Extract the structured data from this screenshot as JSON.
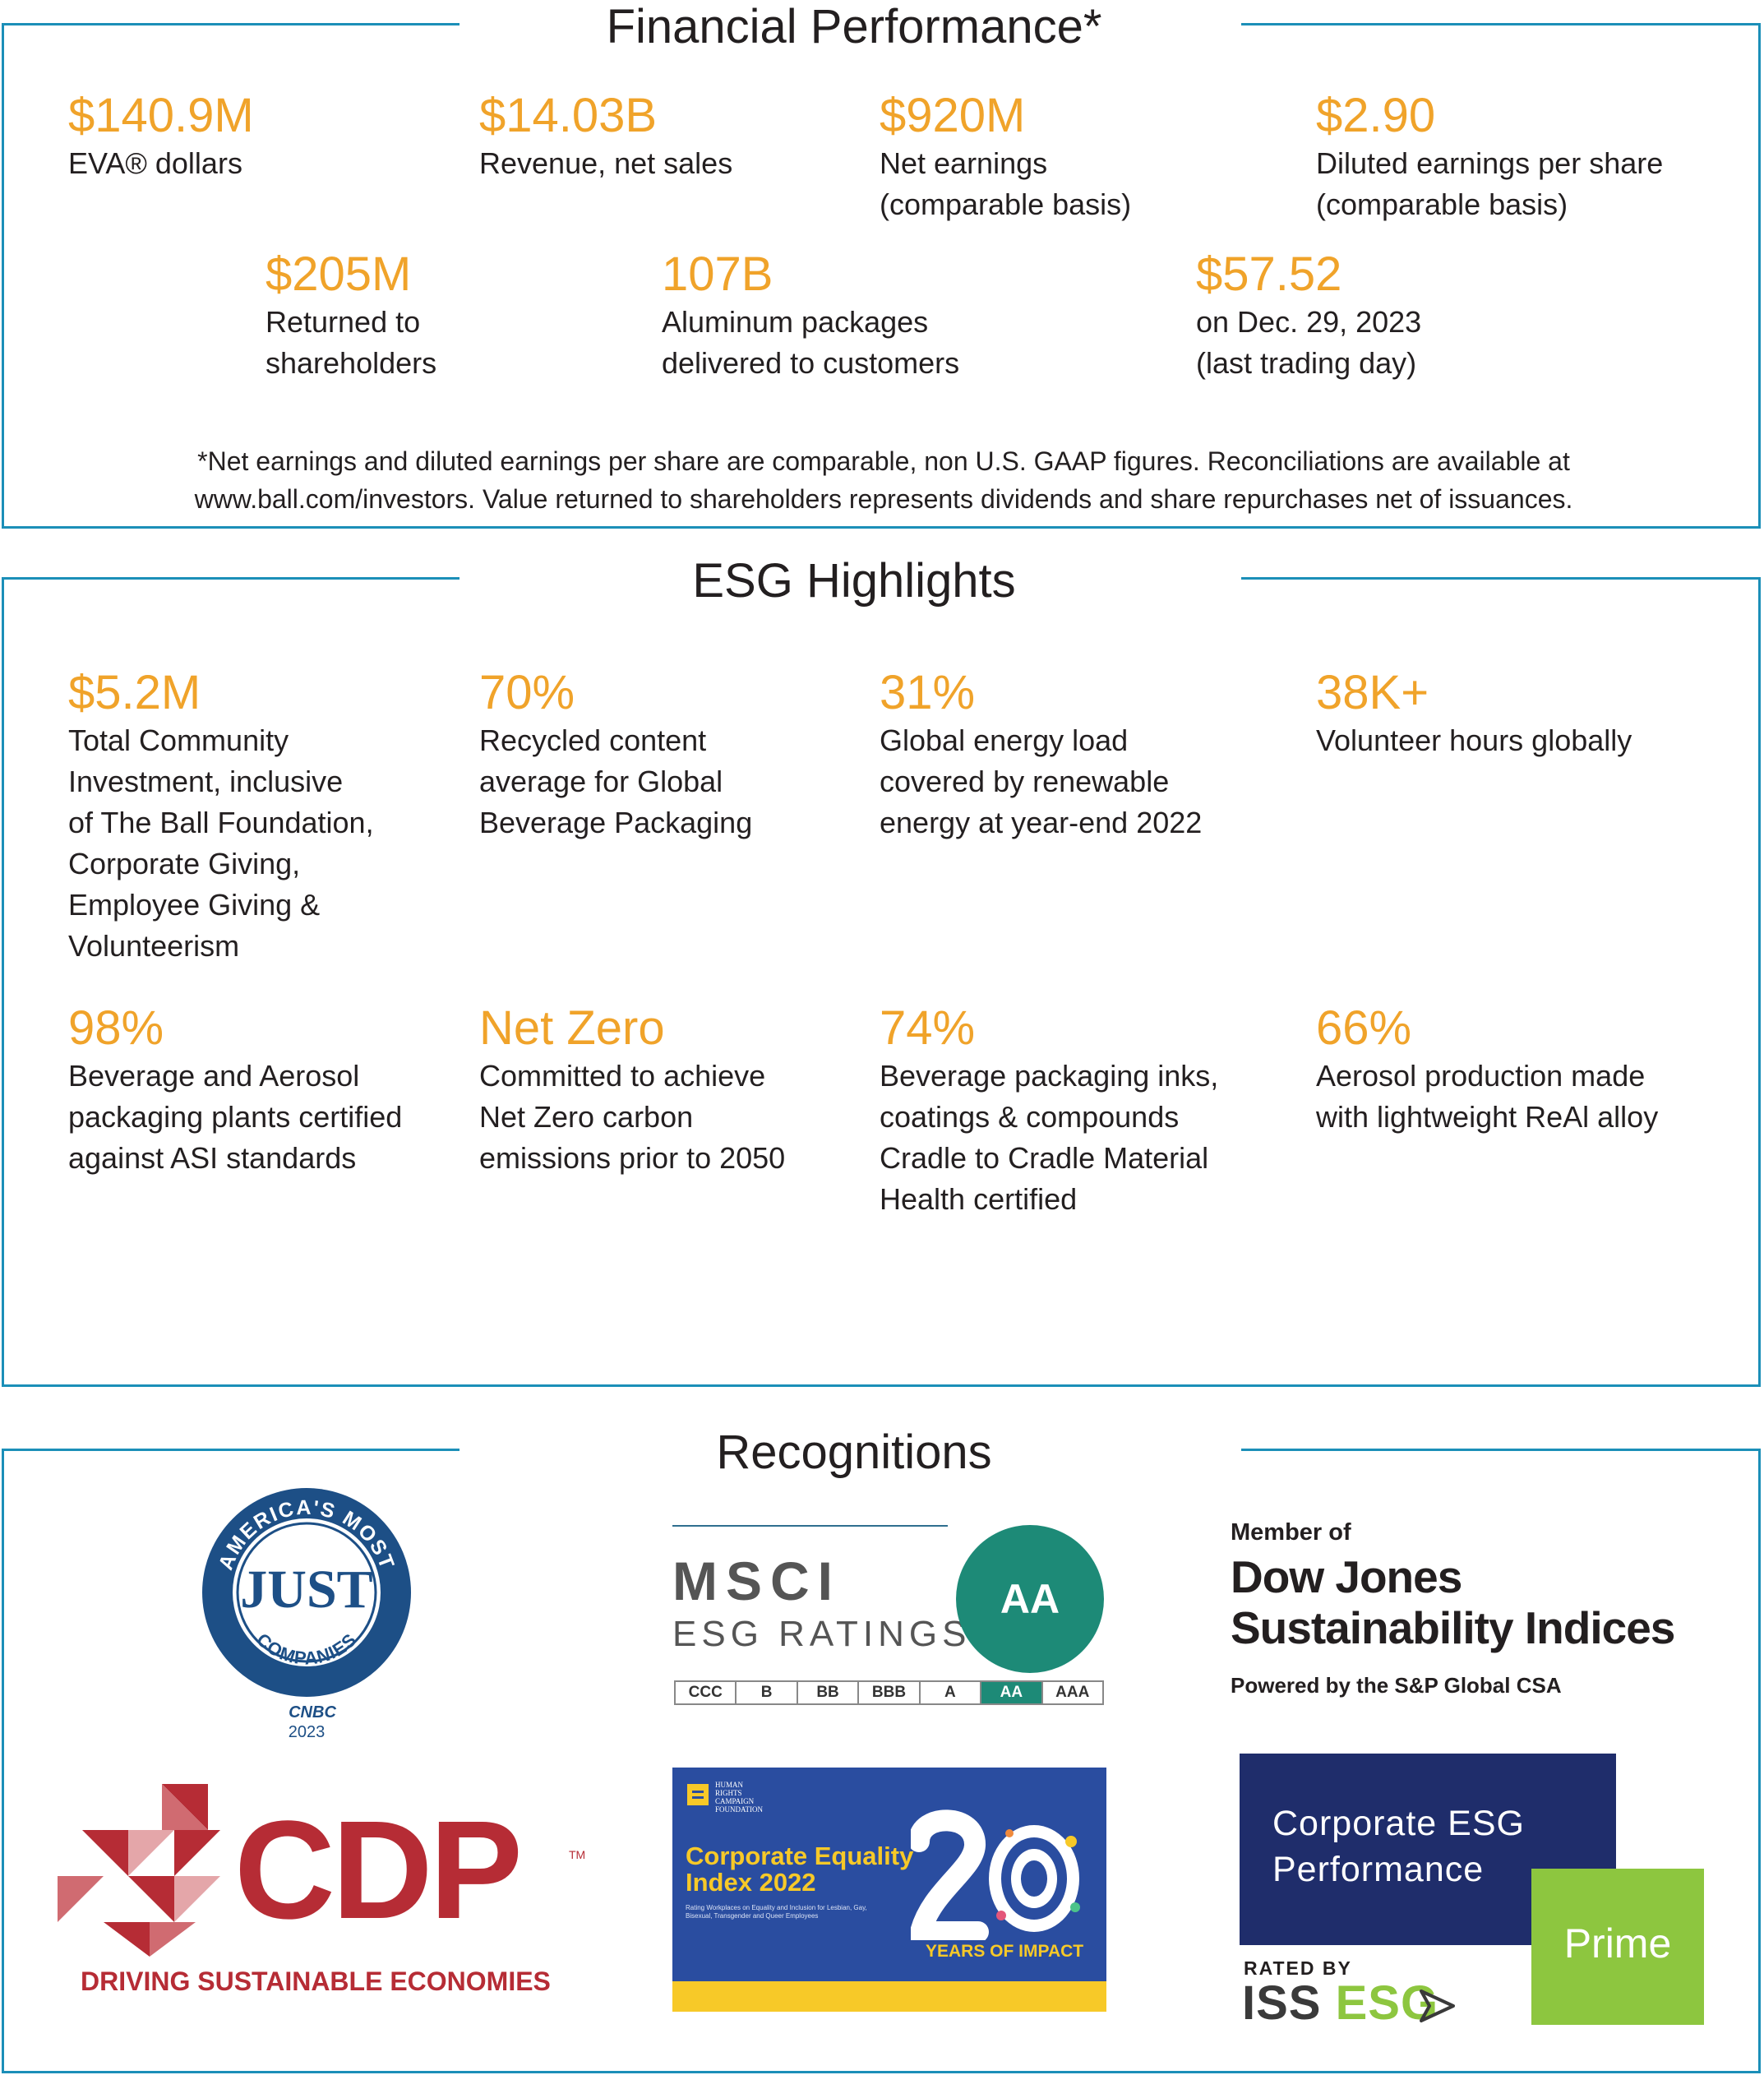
{
  "financial": {
    "title": "Financial Performance*",
    "stats": [
      {
        "value": "$140.9M",
        "desc": "EVA® dollars"
      },
      {
        "value": "$14.03B",
        "desc": "Revenue, net sales"
      },
      {
        "value": "$920M",
        "desc": "Net earnings\n(comparable basis)"
      },
      {
        "value": "$2.90",
        "desc": "Diluted earnings per share\n(comparable basis)"
      },
      {
        "value": "$205M",
        "desc": "Returned to\nshareholders"
      },
      {
        "value": "107B",
        "desc": "Aluminum packages\ndelivered to customers"
      },
      {
        "value": "$57.52",
        "desc": "on Dec. 29, 2023\n(last trading day)"
      }
    ],
    "footnote": "*Net earnings and diluted earnings per share are comparable, non U.S. GAAP figures. Reconciliations are available at\nwww.ball.com/investors. Value returned to shareholders represents dividends and share repurchases net of issuances."
  },
  "esg": {
    "title": "ESG Highlights",
    "stats": [
      {
        "value": "$5.2M",
        "desc": "Total Community\nInvestment, inclusive\nof The Ball Foundation,\nCorporate Giving,\nEmployee Giving &\nVolunteerism"
      },
      {
        "value": "70%",
        "desc": "Recycled content\naverage for Global\nBeverage Packaging"
      },
      {
        "value": "31%",
        "desc": "Global energy load\ncovered by renewable\nenergy at year-end 2022"
      },
      {
        "value": "38K+",
        "desc": "Volunteer hours globally"
      },
      {
        "value": "98%",
        "desc": "Beverage and Aerosol\npackaging plants certified\nagainst ASI standards"
      },
      {
        "value": "Net Zero",
        "desc": "Committed to achieve\nNet Zero carbon\nemissions prior to 2050"
      },
      {
        "value": "74%",
        "desc": "Beverage packaging inks,\ncoatings & compounds\nCradle to Cradle Material\nHealth certified"
      },
      {
        "value": "66%",
        "desc": "Aerosol production made\nwith lightweight ReAl alloy"
      }
    ]
  },
  "recognitions": {
    "title": "Recognitions",
    "just": {
      "ring": "AMERICA'S MOST",
      "center": "JUST",
      "bottom": "COMPANIES",
      "source": "CNBC",
      "year": "2023"
    },
    "msci": {
      "name": "MSCI",
      "sub": "ESG RATINGS",
      "rating": "AA",
      "scale": [
        "CCC",
        "B",
        "BB",
        "BBB",
        "A",
        "AA",
        "AAA"
      ],
      "selected": 5
    },
    "dowjones": {
      "member": "Member of",
      "name1": "Dow Jones",
      "name2": "Sustainability Indices",
      "powered": "Powered by the S&P Global CSA"
    },
    "cdp": {
      "name": "CDP",
      "tm": "TM",
      "tagline": "DRIVING SUSTAINABLE ECONOMIES"
    },
    "hrc": {
      "org": "HUMAN\nRIGHTS\nCAMPAIGN\nFOUNDATION",
      "title": "Corporate Equality\nIndex 2022",
      "subtitle": "Rating Workplaces on Equality and Inclusion for Lesbian, Gay,\nBisexual, Transgender and Queer Employees",
      "years": "YEARS OF IMPACT"
    },
    "iss": {
      "box": "Corporate ESG\nPerformance",
      "prime": "Prime",
      "rated": "RATED BY",
      "name_a": "ISS ",
      "name_b": "ESG"
    }
  },
  "colors": {
    "accent": "#f0a32a",
    "border": "#1b8fb8",
    "text": "#231f20",
    "msci_green": "#1d8a77",
    "cdp_red": "#b62c35",
    "hrc_blue": "#2a4da0",
    "hrc_yellow": "#f7c928",
    "iss_navy": "#1f2d6b",
    "iss_green": "#8dc63f"
  }
}
